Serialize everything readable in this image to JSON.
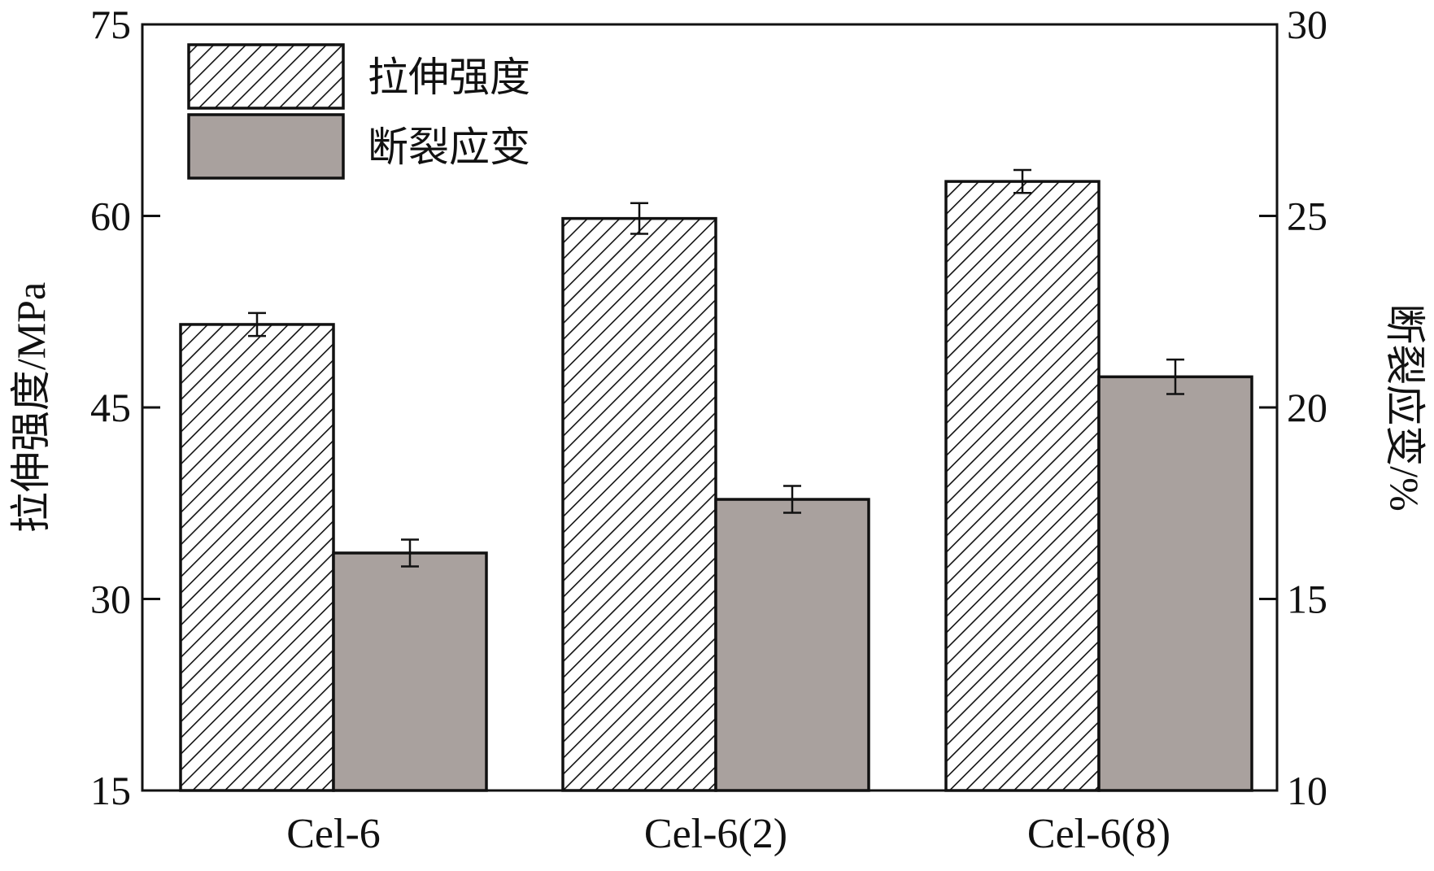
{
  "chart_data": {
    "type": "bar",
    "categories": [
      "Cel-6",
      "Cel-6(2)",
      "Cel-6(8)"
    ],
    "series": [
      {
        "name": "拉伸强度",
        "axis": "left",
        "values": [
          51.5,
          59.8,
          62.7
        ],
        "errors": [
          0.9,
          1.2,
          0.9
        ],
        "pattern": "diagonal-hatch",
        "color": "#ffffff"
      },
      {
        "name": "断裂应变",
        "axis": "right",
        "values": [
          16.2,
          17.6,
          20.8
        ],
        "errors": [
          0.35,
          0.35,
          0.45
        ],
        "pattern": "solid",
        "color": "#a9a19e"
      }
    ],
    "ylabel_left": "拉伸强度/MPa",
    "ylabel_right": "断裂应变/%",
    "ylim_left": [
      15,
      75
    ],
    "ylim_right": [
      10,
      30
    ],
    "yticks_left": [
      "15",
      "30",
      "45",
      "60",
      "75"
    ],
    "yticks_right": [
      "10",
      "15",
      "20",
      "25",
      "30"
    ],
    "legend_position": "top-left",
    "grid": false
  }
}
